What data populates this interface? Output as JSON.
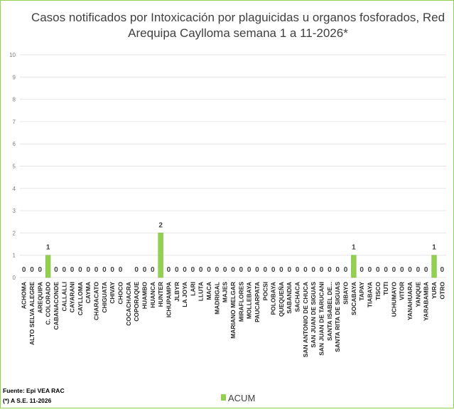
{
  "chart_data": {
    "type": "bar",
    "title": [
      "Casos notificados por Intoxicación por plaguicidas u organos fosforados, Red",
      "Arequipa Caylloma semana 1 a  11-2026*"
    ],
    "categories": [
      "ACHOMA",
      "ALTO SELVA ALEGRE",
      "AREQUIPA",
      "C. COLORADO",
      "CABANACONDE",
      "CALLALLI",
      "CAYARANI",
      "CAYLLOMA",
      "CAYMA",
      "CHARACATO",
      "CHIGUATA",
      "CHIVAY",
      "CHOCO",
      "COCACHACRA",
      "COPORAQUE",
      "HUAMBO",
      "HUANCA",
      "HUNTER",
      "ICHUPAMPA",
      "JLBYR",
      "LA JOYA",
      "LARI",
      "LLUTA",
      "MACA",
      "MADRIGAL",
      "MAJES",
      "MARIANO MELGAR",
      "MIRAFLORES",
      "MOLLEBAYA",
      "PAUCARPATA",
      "POCSI",
      "POLOBAYA",
      "QUEQUEÑA",
      "SABANDIA",
      "SACHACA",
      "SAN ANTONIO DE CHUCA",
      "SAN JUAN DE SIGUAS",
      "SAN JUAN DE TARUCANI",
      "SANTA ISABEL DE...",
      "SANTA RITA DE SIGUAS",
      "SIBAYO",
      "SOCABAYA",
      "TAPAY",
      "TIABAYA",
      "TISCO",
      "TUTI",
      "UCHUMAYO",
      "VITOR",
      "YANAHUARA",
      "YANQUE",
      "YARABAMBA",
      "YURA",
      "OTRO"
    ],
    "series": [
      {
        "name": "ACUM",
        "color": "#92d050",
        "values": [
          0,
          0,
          0,
          1,
          0,
          0,
          0,
          0,
          0,
          0,
          0,
          0,
          0,
          null,
          0,
          0,
          0,
          2,
          0,
          0,
          0,
          0,
          0,
          0,
          0,
          0,
          0,
          0,
          0,
          0,
          0,
          0,
          0,
          0,
          0,
          0,
          0,
          0,
          0,
          0,
          0,
          1,
          0,
          0,
          0,
          0,
          0,
          0,
          0,
          0,
          0,
          1,
          0
        ]
      }
    ],
    "ylim": [
      0,
      10
    ],
    "yticks": [
      0,
      1,
      2,
      3,
      4,
      5,
      6,
      7,
      8,
      9,
      10
    ],
    "grid": true,
    "legend": "bottom",
    "notes": [
      "Fuente: Epi VEA RAC",
      "(*) A S.E. 11-2026"
    ]
  }
}
